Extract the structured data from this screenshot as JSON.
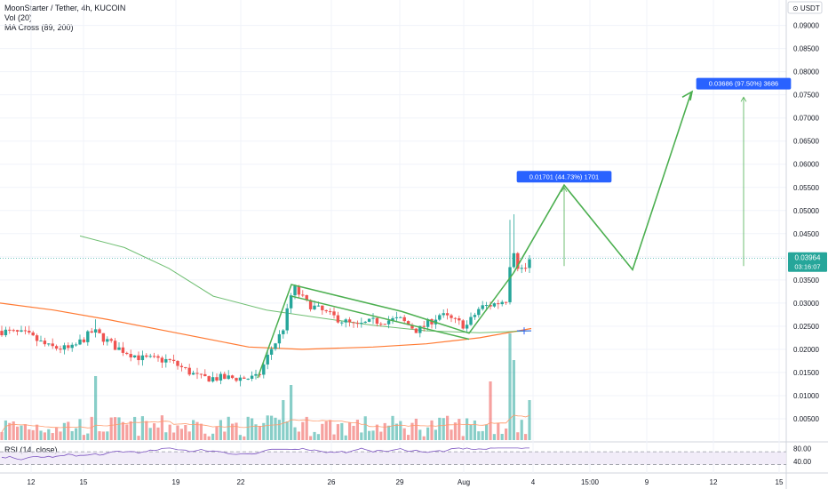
{
  "header": {
    "title": "MoonStarter / Tether, 4h, KUCOIN",
    "indicators": [
      "Vol (20)",
      "MA Cross (89, 200)"
    ],
    "rsi_label": "RSI (14, close)"
  },
  "chart_data": {
    "type": "candlestick",
    "symbol": "MoonStarter / Tether",
    "interval": "4h",
    "exchange": "KUCOIN",
    "currency_label": "USDT",
    "y_ticks": [
      "0.09000",
      "0.08500",
      "0.08000",
      "0.07500",
      "0.07000",
      "0.06500",
      "0.06000",
      "0.05500",
      "0.05000",
      "0.04500",
      "0.04000",
      "0.03500",
      "0.03000",
      "0.02500",
      "0.02000",
      "0.01500",
      "0.01000",
      "0.00500"
    ],
    "y_tick_values": [
      0.09,
      0.085,
      0.08,
      0.075,
      0.07,
      0.065,
      0.06,
      0.055,
      0.05,
      0.045,
      0.04,
      0.035,
      0.03,
      0.025,
      0.02,
      0.015,
      0.01,
      0.005
    ],
    "ylim": [
      0.0,
      0.0955
    ],
    "x_ticks": [
      "12",
      "15",
      "19",
      "22",
      "26",
      "29",
      "Aug",
      "4",
      "15:00",
      "9",
      "12",
      "15"
    ],
    "last_price": "0.03964",
    "last_price_value": 0.03964,
    "countdown": "03:16:07",
    "rsi_ticks": [
      "80.00",
      "40.00"
    ],
    "rsi_levels": [
      70,
      30
    ],
    "annotations": [
      {
        "text": "0.01701 (44.73%) 1701"
      },
      {
        "text": "0.03686 (97.50%) 3686"
      }
    ],
    "colors": {
      "up": "#26a69a",
      "down": "#ef5350",
      "ma_fast": "#4caf50",
      "ma_slow": "#ff7a33",
      "projection": "#4caf50",
      "label_bg": "#2962ff",
      "rsi_line": "#7e57c2",
      "rsi_band": "#ede7f6"
    }
  }
}
